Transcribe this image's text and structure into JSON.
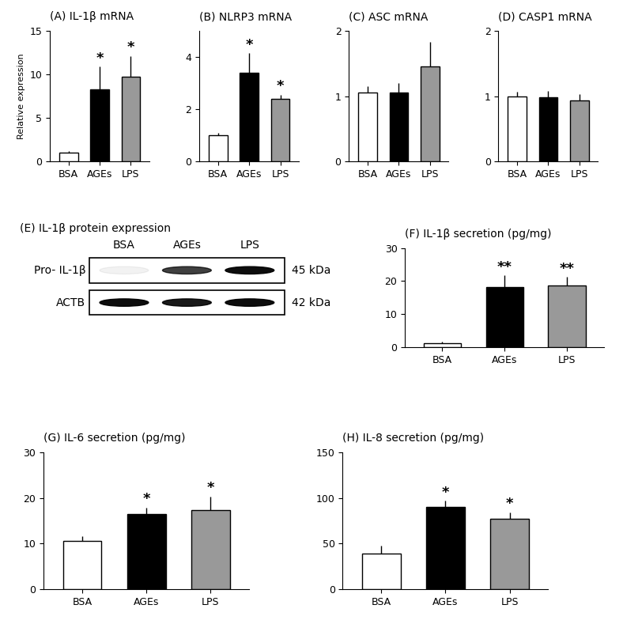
{
  "chart_data": [
    {
      "type": "bar",
      "title": "(A) IL-1β mRNA",
      "y_label": "Relative expression",
      "categories": [
        "BSA",
        "AGEs",
        "LPS"
      ],
      "values": [
        1.0,
        8.3,
        9.7
      ],
      "error": [
        0.15,
        2.6,
        2.4
      ],
      "significance": [
        null,
        "*",
        "*"
      ],
      "colors": [
        "#ffffff",
        "#000000",
        "#999999"
      ],
      "ylim": [
        0,
        15
      ],
      "yticks": [
        0,
        5,
        10,
        15
      ]
    },
    {
      "type": "bar",
      "title": "(B) NLRP3 mRNA",
      "categories": [
        "BSA",
        "AGEs",
        "LPS"
      ],
      "values": [
        1.0,
        3.4,
        2.4
      ],
      "error": [
        0.1,
        0.75,
        0.15
      ],
      "significance": [
        null,
        "*",
        "*"
      ],
      "colors": [
        "#ffffff",
        "#000000",
        "#999999"
      ],
      "ylim": [
        0,
        5
      ],
      "yticks": [
        0,
        2,
        4
      ]
    },
    {
      "type": "bar",
      "title": "(C) ASC mRNA",
      "categories": [
        "BSA",
        "AGEs",
        "LPS"
      ],
      "values": [
        1.05,
        1.05,
        1.45
      ],
      "error": [
        0.1,
        0.15,
        0.38
      ],
      "significance": [
        null,
        null,
        null
      ],
      "colors": [
        "#ffffff",
        "#000000",
        "#999999"
      ],
      "ylim": [
        0,
        2
      ],
      "yticks": [
        0,
        1,
        2
      ]
    },
    {
      "type": "bar",
      "title": "(D) CASP1 mRNA",
      "categories": [
        "BSA",
        "AGEs",
        "LPS"
      ],
      "values": [
        1.0,
        0.98,
        0.93
      ],
      "error": [
        0.07,
        0.1,
        0.1
      ],
      "significance": [
        null,
        null,
        null
      ],
      "colors": [
        "#ffffff",
        "#000000",
        "#999999"
      ],
      "ylim": [
        0,
        2
      ],
      "yticks": [
        0,
        1,
        2
      ]
    },
    {
      "type": "blot",
      "title": "(E) IL-1β protein expression",
      "lanes": [
        "BSA",
        "AGEs",
        "LPS"
      ],
      "rows": [
        {
          "name": "Pro- IL-1β",
          "size": "45 kDa",
          "intensity": [
            0.05,
            0.75,
            0.95
          ]
        },
        {
          "name": "ACTB",
          "size": "42 kDa",
          "intensity": [
            0.95,
            0.9,
            0.95
          ]
        }
      ]
    },
    {
      "type": "bar",
      "title": "(F) IL-1β secretion (pg/mg)",
      "categories": [
        "BSA",
        "AGEs",
        "LPS"
      ],
      "values": [
        1.2,
        18.3,
        18.7
      ],
      "error": [
        0.4,
        3.5,
        2.5
      ],
      "significance": [
        null,
        "**",
        "**"
      ],
      "colors": [
        "#ffffff",
        "#000000",
        "#999999"
      ],
      "ylim": [
        0,
        30
      ],
      "yticks": [
        0,
        10,
        20,
        30
      ]
    },
    {
      "type": "bar",
      "title": "(G) IL-6 secretion (pg/mg)",
      "categories": [
        "BSA",
        "AGEs",
        "LPS"
      ],
      "values": [
        10.5,
        16.5,
        17.4
      ],
      "error": [
        1.2,
        1.4,
        3.0
      ],
      "significance": [
        null,
        "*",
        "*"
      ],
      "colors": [
        "#ffffff",
        "#000000",
        "#999999"
      ],
      "ylim": [
        0,
        30
      ],
      "yticks": [
        0,
        10,
        20,
        30
      ]
    },
    {
      "type": "bar",
      "title": "(H) IL-8 secretion (pg/mg)",
      "categories": [
        "BSA",
        "AGEs",
        "LPS"
      ],
      "values": [
        39,
        90,
        77
      ],
      "error": [
        9,
        7,
        7
      ],
      "significance": [
        null,
        "*",
        "*"
      ],
      "colors": [
        "#ffffff",
        "#000000",
        "#999999"
      ],
      "ylim": [
        0,
        150
      ],
      "yticks": [
        0,
        50,
        100,
        150
      ]
    }
  ]
}
